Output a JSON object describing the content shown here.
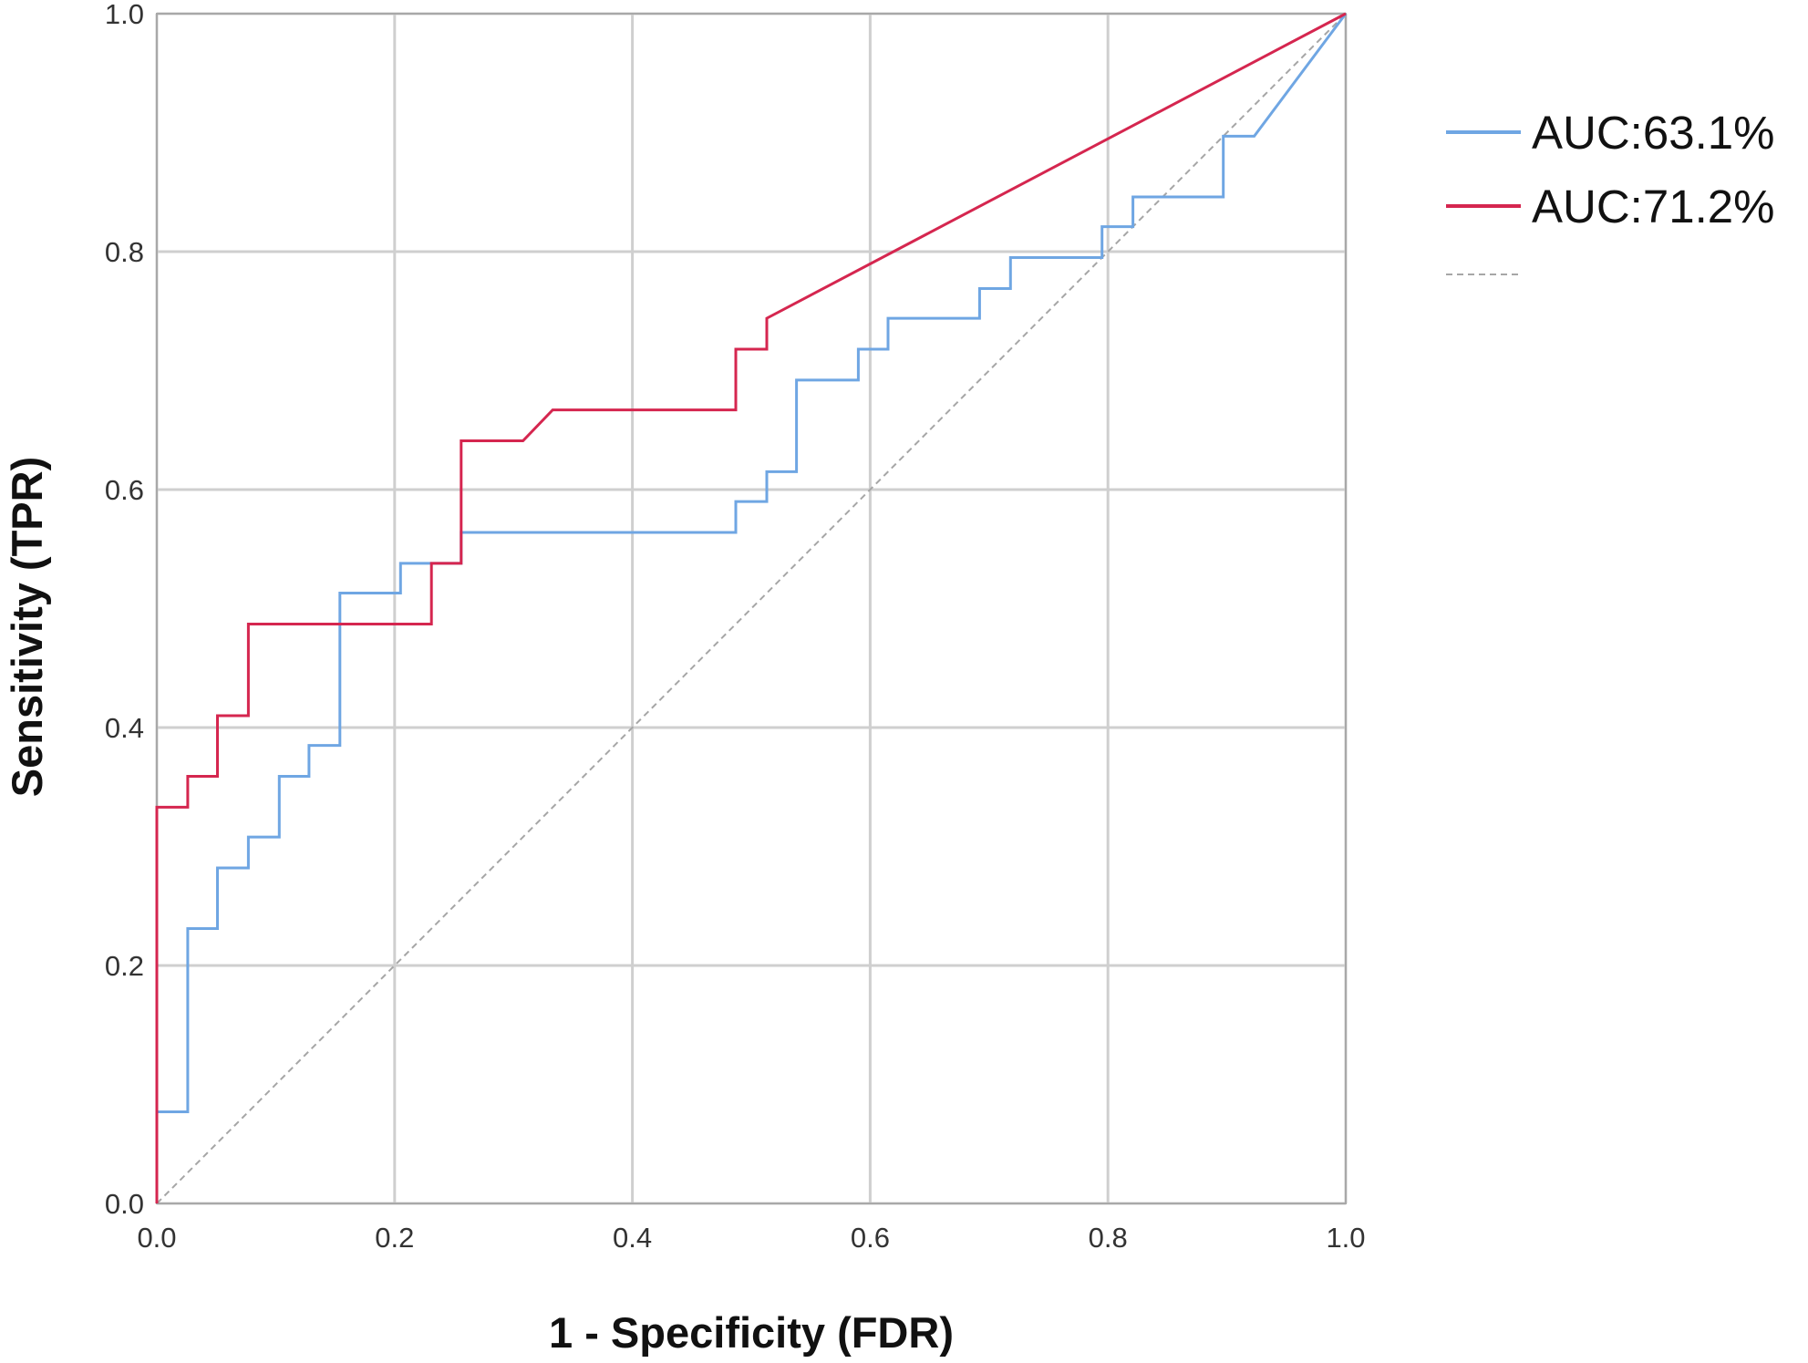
{
  "chart_data": {
    "type": "line",
    "title": "",
    "xlabel": "1 - Specificity (FDR)",
    "ylabel": "Sensitivity (TPR)",
    "xlim": [
      0,
      1
    ],
    "ylim": [
      0,
      1
    ],
    "x_ticks": [
      "0.0",
      "0.2",
      "0.4",
      "0.6",
      "0.8",
      "1.0"
    ],
    "y_ticks": [
      "0.0",
      "0.2",
      "0.4",
      "0.6",
      "0.8",
      "1.0"
    ],
    "grid": true,
    "legend_position": "right",
    "series": [
      {
        "name": "AUC:63.1%",
        "color": "#6fa6e3",
        "style": "solid",
        "points": [
          [
            0.0,
            0.0
          ],
          [
            0.0,
            0.077
          ],
          [
            0.026,
            0.077
          ],
          [
            0.026,
            0.231
          ],
          [
            0.051,
            0.231
          ],
          [
            0.051,
            0.282
          ],
          [
            0.077,
            0.282
          ],
          [
            0.077,
            0.308
          ],
          [
            0.103,
            0.308
          ],
          [
            0.103,
            0.359
          ],
          [
            0.128,
            0.359
          ],
          [
            0.128,
            0.385
          ],
          [
            0.154,
            0.385
          ],
          [
            0.154,
            0.513
          ],
          [
            0.205,
            0.513
          ],
          [
            0.205,
            0.538
          ],
          [
            0.256,
            0.538
          ],
          [
            0.256,
            0.564
          ],
          [
            0.487,
            0.564
          ],
          [
            0.487,
            0.59
          ],
          [
            0.513,
            0.59
          ],
          [
            0.513,
            0.615
          ],
          [
            0.538,
            0.615
          ],
          [
            0.538,
            0.692
          ],
          [
            0.59,
            0.692
          ],
          [
            0.59,
            0.718
          ],
          [
            0.615,
            0.718
          ],
          [
            0.615,
            0.744
          ],
          [
            0.692,
            0.744
          ],
          [
            0.692,
            0.769
          ],
          [
            0.718,
            0.769
          ],
          [
            0.718,
            0.795
          ],
          [
            0.795,
            0.795
          ],
          [
            0.795,
            0.821
          ],
          [
            0.821,
            0.821
          ],
          [
            0.821,
            0.846
          ],
          [
            0.897,
            0.846
          ],
          [
            0.897,
            0.897
          ],
          [
            0.923,
            0.897
          ],
          [
            1.0,
            1.0
          ]
        ]
      },
      {
        "name": "AUC:71.2%",
        "color": "#d5264f",
        "style": "solid",
        "points": [
          [
            0.0,
            0.0
          ],
          [
            0.0,
            0.333
          ],
          [
            0.026,
            0.333
          ],
          [
            0.026,
            0.359
          ],
          [
            0.051,
            0.359
          ],
          [
            0.051,
            0.41
          ],
          [
            0.077,
            0.41
          ],
          [
            0.077,
            0.487
          ],
          [
            0.231,
            0.487
          ],
          [
            0.231,
            0.538
          ],
          [
            0.256,
            0.538
          ],
          [
            0.256,
            0.641
          ],
          [
            0.308,
            0.641
          ],
          [
            0.333,
            0.667
          ],
          [
            0.487,
            0.667
          ],
          [
            0.487,
            0.718
          ],
          [
            0.513,
            0.718
          ],
          [
            0.513,
            0.744
          ],
          [
            1.0,
            1.0
          ]
        ]
      },
      {
        "name": "",
        "color": "#a6a6a6",
        "style": "dashed",
        "points": [
          [
            0.0,
            0.0
          ],
          [
            1.0,
            1.0
          ]
        ]
      }
    ]
  }
}
